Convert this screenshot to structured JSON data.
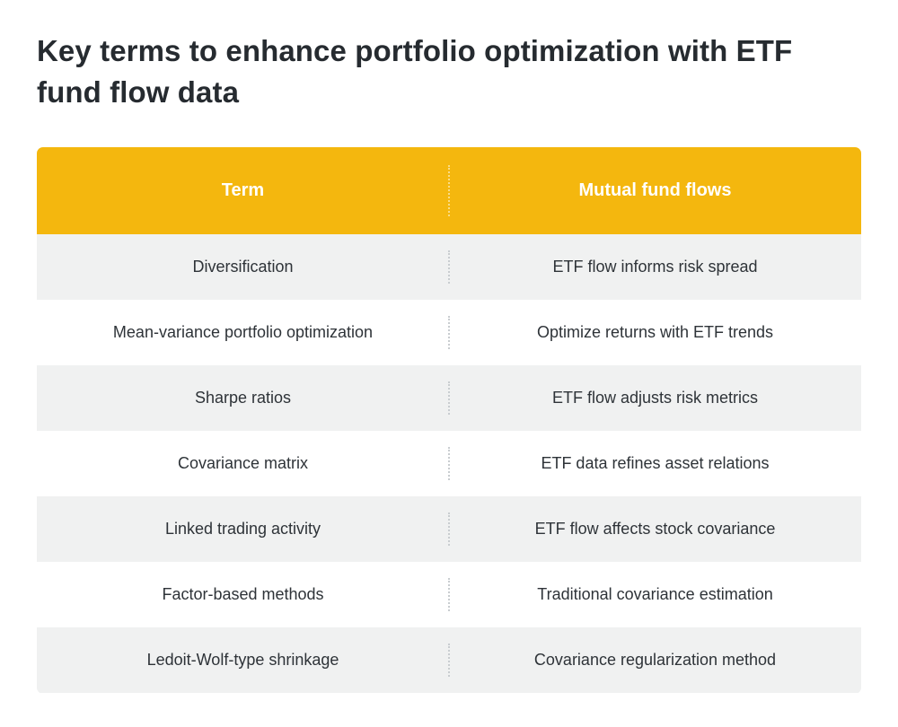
{
  "page": {
    "title": "Key terms to enhance portfolio optimization with ETF fund flow data"
  },
  "colors": {
    "header_background": "#f4b70e",
    "header_text": "#ffffff",
    "row_shaded": "#f0f1f1",
    "row_plain": "#ffffff",
    "title_text": "#262b30"
  },
  "table": {
    "headers": [
      "Term",
      "Mutual fund flows"
    ],
    "rows": [
      [
        "Diversification",
        "ETF flow informs risk spread"
      ],
      [
        "Mean-variance portfolio optimization",
        "Optimize returns with ETF trends"
      ],
      [
        "Sharpe ratios",
        "ETF flow adjusts risk metrics"
      ],
      [
        "Covariance matrix",
        "ETF data refines asset relations"
      ],
      [
        "Linked trading activity",
        "ETF flow affects stock covariance"
      ],
      [
        "Factor-based methods",
        "Traditional covariance estimation"
      ],
      [
        "Ledoit-Wolf-type shrinkage",
        "Covariance regularization method"
      ]
    ]
  }
}
